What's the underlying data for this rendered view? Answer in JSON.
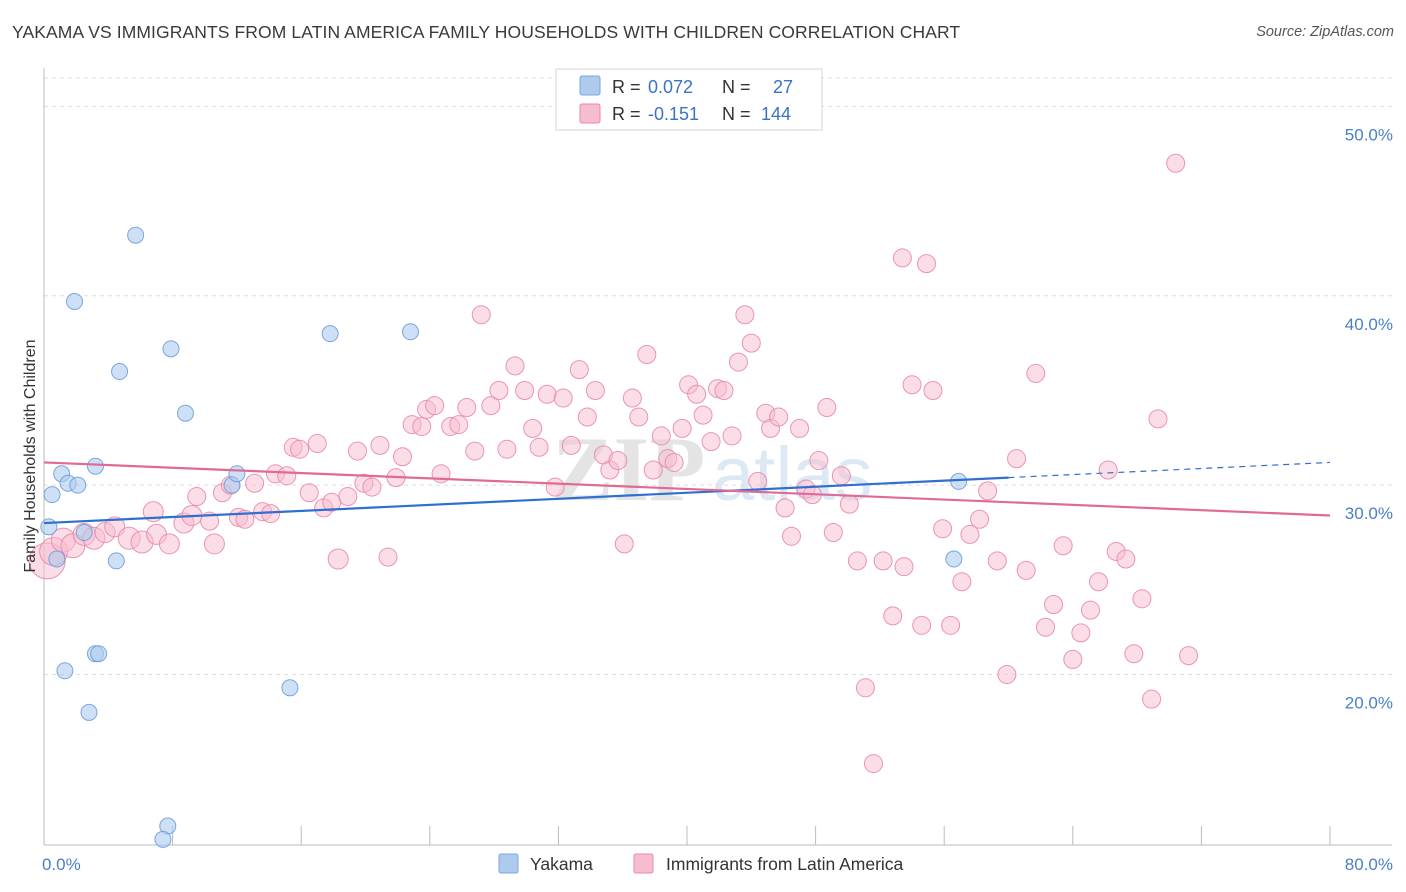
{
  "title": "YAKAMA VS IMMIGRANTS FROM LATIN AMERICA FAMILY HOUSEHOLDS WITH CHILDREN CORRELATION CHART",
  "source": "Source: ZipAtlas.com",
  "watermark": {
    "part1": "ZIP",
    "part2": "atlas"
  },
  "legend": {
    "rows": [
      {
        "r_label": "R =",
        "r_value": "0.072",
        "n_label": "N =",
        "n_value": "27",
        "color": "#aecbee"
      },
      {
        "r_label": "R =",
        "r_value": "-0.151",
        "n_label": "N =",
        "n_value": "144",
        "color": "#f7bcd0"
      }
    ]
  },
  "bottom_legend": [
    {
      "label": "Yakama",
      "color": "#aecbee"
    },
    {
      "label": "Immigrants from Latin America",
      "color": "#f7bcd0"
    }
  ],
  "chart_data": {
    "type": "scatter",
    "title": "YAKAMA VS IMMIGRANTS FROM LATIN AMERICA FAMILY HOUSEHOLDS WITH CHILDREN CORRELATION CHART",
    "xlabel": "",
    "ylabel": "Family Households with Children",
    "xlim": [
      0,
      80
    ],
    "ylim": [
      11,
      51.5
    ],
    "x_tick_labels": [
      "0.0%",
      "80.0%"
    ],
    "y_ticks": [
      20,
      30,
      40,
      50
    ],
    "y_tick_labels": [
      "20.0%",
      "30.0%",
      "40.0%",
      "50.0%"
    ],
    "grid": "horizontal dashed",
    "legend_position": "top-center",
    "series": [
      {
        "name": "Yakama",
        "color": "#aecbee",
        "stroke": "#6e9fd8",
        "trend": {
          "x0": 0,
          "y0": 28.0,
          "x1": 60,
          "y1": 30.4,
          "color": "#2f6fcf"
        },
        "points": [
          [
            0.3,
            27.8,
            8
          ],
          [
            0.5,
            29.5,
            8
          ],
          [
            0.8,
            26.1,
            8
          ],
          [
            1.1,
            30.6,
            8
          ],
          [
            1.5,
            30.1,
            8
          ],
          [
            2.1,
            30.0,
            8
          ],
          [
            2.5,
            27.5,
            8
          ],
          [
            3.2,
            31.0,
            8
          ],
          [
            1.9,
            39.7,
            8
          ],
          [
            5.7,
            43.2,
            8
          ],
          [
            4.7,
            36.0,
            8
          ],
          [
            7.9,
            37.2,
            8
          ],
          [
            8.8,
            33.8,
            8
          ],
          [
            11.7,
            30.0,
            8
          ],
          [
            12.0,
            30.6,
            8
          ],
          [
            17.8,
            38.0,
            8
          ],
          [
            22.8,
            38.1,
            8
          ],
          [
            4.5,
            26.0,
            8
          ],
          [
            3.2,
            21.1,
            8
          ],
          [
            3.4,
            21.1,
            8
          ],
          [
            1.3,
            20.2,
            8
          ],
          [
            2.8,
            18.0,
            8
          ],
          [
            15.3,
            19.3,
            8
          ],
          [
            7.7,
            12.0,
            8
          ],
          [
            7.4,
            11.3,
            8
          ],
          [
            56.6,
            26.1,
            8
          ],
          [
            56.9,
            30.2,
            8
          ]
        ]
      },
      {
        "name": "Immigrants from Latin America",
        "color": "#f7bcd0",
        "stroke": "#e98aab",
        "trend": {
          "x0": 0,
          "y0": 31.2,
          "x1": 80,
          "y1": 28.4,
          "color": "#e06a96"
        },
        "points": [
          [
            0.2,
            26.0,
            18
          ],
          [
            0.6,
            26.5,
            14
          ],
          [
            1.2,
            27.1,
            12
          ],
          [
            1.8,
            26.8,
            12
          ],
          [
            2.5,
            27.4,
            11
          ],
          [
            3.1,
            27.2,
            11
          ],
          [
            3.8,
            27.5,
            10
          ],
          [
            4.4,
            27.8,
            10
          ],
          [
            5.3,
            27.2,
            11
          ],
          [
            6.1,
            27.0,
            11
          ],
          [
            7.0,
            27.4,
            10
          ],
          [
            7.8,
            26.9,
            10
          ],
          [
            6.8,
            28.6,
            10
          ],
          [
            8.7,
            28.0,
            10
          ],
          [
            9.2,
            28.4,
            10
          ],
          [
            9.5,
            29.4,
            9
          ],
          [
            10.3,
            28.1,
            9
          ],
          [
            10.6,
            26.9,
            10
          ],
          [
            11.1,
            29.6,
            9
          ],
          [
            11.6,
            30.0,
            9
          ],
          [
            12.1,
            28.3,
            9
          ],
          [
            12.5,
            28.2,
            9
          ],
          [
            13.1,
            30.1,
            9
          ],
          [
            13.6,
            28.6,
            9
          ],
          [
            14.1,
            28.5,
            9
          ],
          [
            14.4,
            30.6,
            9
          ],
          [
            15.1,
            30.5,
            9
          ],
          [
            15.5,
            32.0,
            9
          ],
          [
            15.9,
            31.9,
            9
          ],
          [
            16.5,
            29.6,
            9
          ],
          [
            17.0,
            32.2,
            9
          ],
          [
            17.4,
            28.8,
            9
          ],
          [
            17.9,
            29.1,
            9
          ],
          [
            18.3,
            26.1,
            10
          ],
          [
            18.9,
            29.4,
            9
          ],
          [
            19.5,
            31.8,
            9
          ],
          [
            19.9,
            30.1,
            9
          ],
          [
            20.4,
            29.9,
            9
          ],
          [
            20.9,
            32.1,
            9
          ],
          [
            21.4,
            26.2,
            9
          ],
          [
            21.9,
            30.4,
            9
          ],
          [
            22.3,
            31.5,
            9
          ],
          [
            22.9,
            33.2,
            9
          ],
          [
            23.5,
            33.1,
            9
          ],
          [
            23.8,
            34.0,
            9
          ],
          [
            24.3,
            34.2,
            9
          ],
          [
            24.7,
            30.6,
            9
          ],
          [
            25.3,
            33.1,
            9
          ],
          [
            25.8,
            33.2,
            9
          ],
          [
            26.3,
            34.1,
            9
          ],
          [
            26.8,
            31.8,
            9
          ],
          [
            27.2,
            39.0,
            9
          ],
          [
            27.8,
            34.2,
            9
          ],
          [
            28.3,
            35.0,
            9
          ],
          [
            28.8,
            31.9,
            9
          ],
          [
            29.3,
            36.3,
            9
          ],
          [
            29.9,
            35.0,
            9
          ],
          [
            30.4,
            33.0,
            9
          ],
          [
            30.8,
            32.0,
            9
          ],
          [
            31.3,
            34.8,
            9
          ],
          [
            31.8,
            29.9,
            9
          ],
          [
            32.3,
            34.6,
            9
          ],
          [
            32.8,
            32.1,
            9
          ],
          [
            33.3,
            36.1,
            9
          ],
          [
            33.8,
            33.6,
            9
          ],
          [
            34.3,
            35.0,
            9
          ],
          [
            34.8,
            31.6,
            9
          ],
          [
            35.2,
            30.8,
            9
          ],
          [
            35.7,
            31.3,
            9
          ],
          [
            36.1,
            26.9,
            9
          ],
          [
            36.6,
            34.6,
            9
          ],
          [
            37.0,
            33.6,
            9
          ],
          [
            37.5,
            36.9,
            9
          ],
          [
            37.9,
            30.8,
            9
          ],
          [
            38.4,
            32.6,
            9
          ],
          [
            38.8,
            31.4,
            9
          ],
          [
            39.2,
            31.2,
            9
          ],
          [
            39.7,
            33.0,
            9
          ],
          [
            40.1,
            35.3,
            9
          ],
          [
            40.6,
            34.8,
            9
          ],
          [
            41.0,
            33.7,
            9
          ],
          [
            41.5,
            32.3,
            9
          ],
          [
            41.9,
            35.1,
            9
          ],
          [
            42.3,
            35.0,
            9
          ],
          [
            42.8,
            32.6,
            9
          ],
          [
            43.2,
            36.5,
            9
          ],
          [
            43.6,
            39.0,
            9
          ],
          [
            44.0,
            37.5,
            9
          ],
          [
            44.4,
            30.2,
            9
          ],
          [
            44.9,
            33.8,
            9
          ],
          [
            45.2,
            33.0,
            9
          ],
          [
            45.7,
            33.6,
            9
          ],
          [
            46.1,
            28.8,
            9
          ],
          [
            46.5,
            27.3,
            9
          ],
          [
            47.0,
            33.0,
            9
          ],
          [
            47.4,
            29.8,
            9
          ],
          [
            47.8,
            29.5,
            9
          ],
          [
            48.2,
            31.3,
            9
          ],
          [
            48.7,
            34.1,
            9
          ],
          [
            49.1,
            27.5,
            9
          ],
          [
            49.6,
            30.5,
            9
          ],
          [
            50.1,
            29.0,
            9
          ],
          [
            50.6,
            26.0,
            9
          ],
          [
            51.1,
            19.3,
            9
          ],
          [
            51.6,
            15.3,
            9
          ],
          [
            52.2,
            26.0,
            9
          ],
          [
            52.8,
            23.1,
            9
          ],
          [
            53.5,
            25.7,
            9
          ],
          [
            54.0,
            35.3,
            9
          ],
          [
            54.6,
            22.6,
            9
          ],
          [
            55.3,
            35.0,
            9
          ],
          [
            55.9,
            27.7,
            9
          ],
          [
            56.4,
            22.6,
            9
          ],
          [
            57.1,
            24.9,
            9
          ],
          [
            57.6,
            27.4,
            9
          ],
          [
            58.2,
            28.2,
            9
          ],
          [
            58.7,
            29.7,
            9
          ],
          [
            59.3,
            26.0,
            9
          ],
          [
            59.9,
            20.0,
            9
          ],
          [
            60.5,
            31.4,
            9
          ],
          [
            61.1,
            25.5,
            9
          ],
          [
            61.7,
            35.9,
            9
          ],
          [
            62.3,
            22.5,
            9
          ],
          [
            62.8,
            23.7,
            9
          ],
          [
            63.4,
            26.8,
            9
          ],
          [
            64.0,
            20.8,
            9
          ],
          [
            64.5,
            22.2,
            9
          ],
          [
            65.1,
            23.4,
            9
          ],
          [
            65.6,
            24.9,
            9
          ],
          [
            66.2,
            30.8,
            9
          ],
          [
            66.7,
            26.5,
            9
          ],
          [
            67.3,
            26.1,
            9
          ],
          [
            67.8,
            21.1,
            9
          ],
          [
            68.3,
            24.0,
            9
          ],
          [
            68.9,
            18.7,
            9
          ],
          [
            69.3,
            33.5,
            9
          ],
          [
            70.4,
            47.0,
            9
          ],
          [
            71.2,
            21.0,
            9
          ],
          [
            53.4,
            42.0,
            9
          ],
          [
            54.9,
            41.7,
            9
          ]
        ]
      }
    ]
  }
}
